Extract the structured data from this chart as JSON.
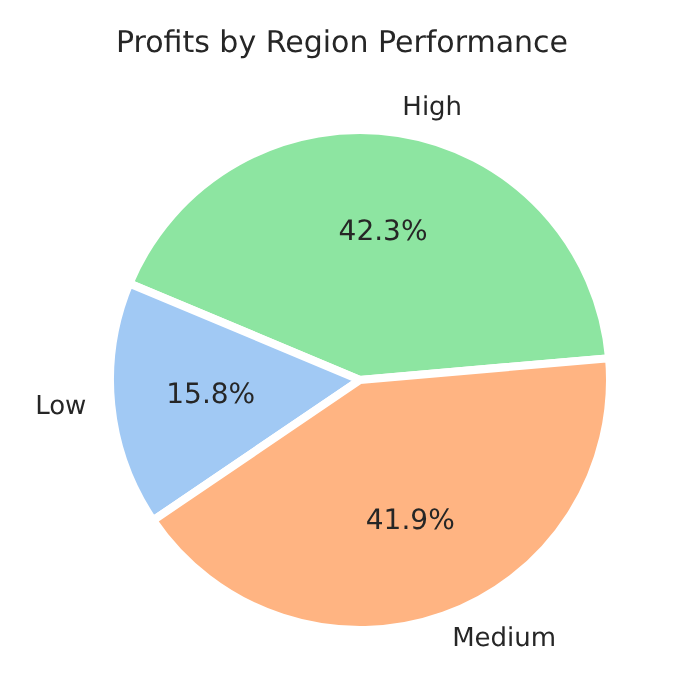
{
  "chart_data": {
    "type": "pie",
    "title": "Profits by Region Performance",
    "categories": [
      "High",
      "Low",
      "Medium"
    ],
    "values": [
      42.3,
      15.8,
      41.9
    ],
    "colors": [
      "#8de5a1",
      "#a1c9f4",
      "#ffb482"
    ],
    "value_labels": [
      "42.3%",
      "15.8%",
      "41.9%"
    ],
    "legend": false
  }
}
